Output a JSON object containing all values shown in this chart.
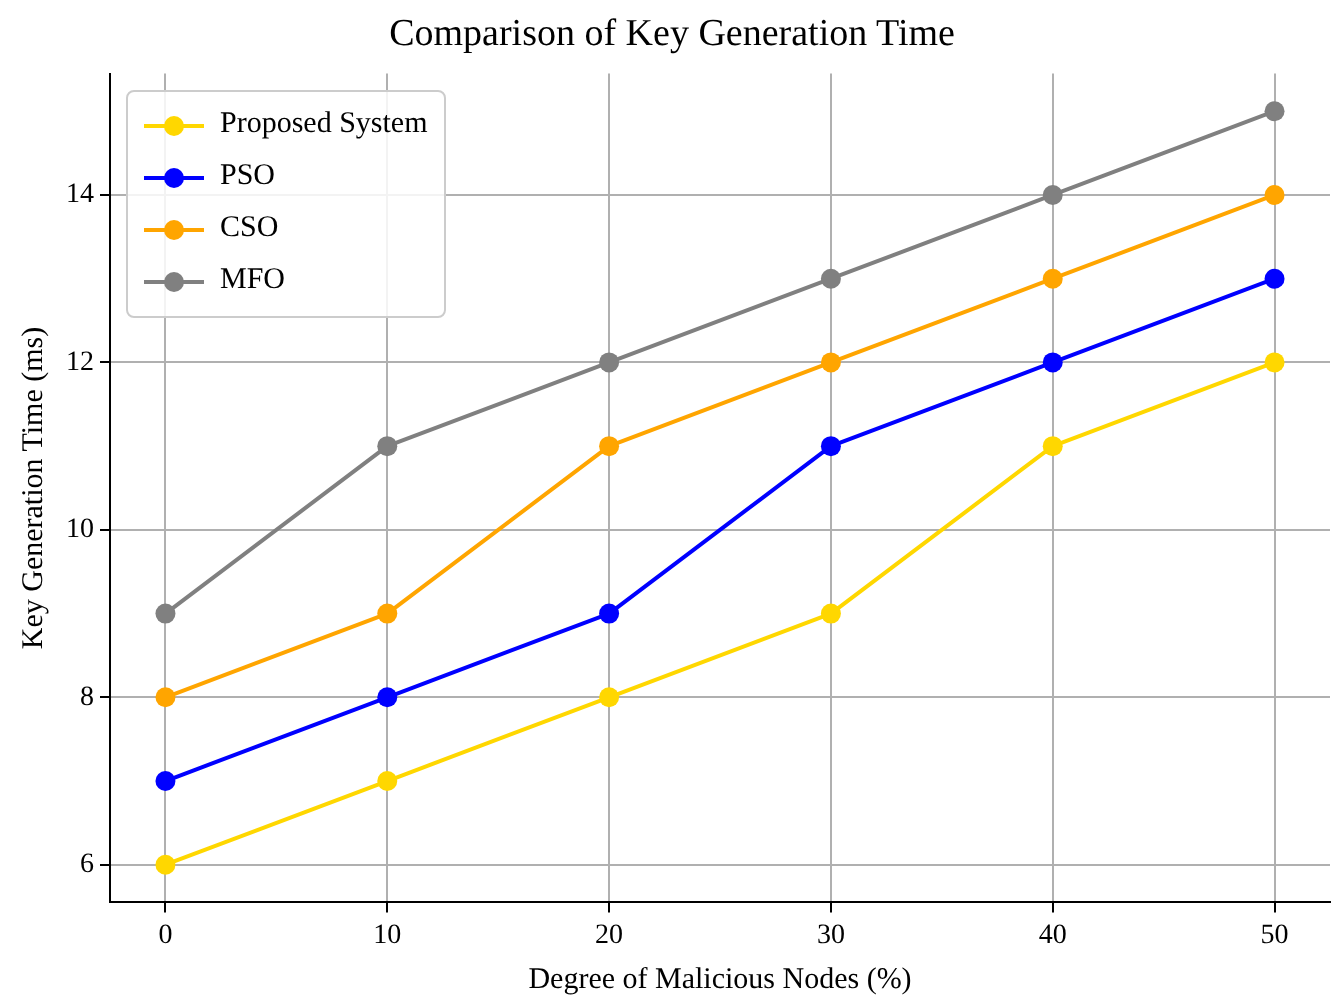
{
  "chart_data": {
    "type": "line",
    "title": "Comparison of Key Generation Time",
    "xlabel": "Degree of Malicious Nodes (%)",
    "ylabel": "Key Generation Time (ms)",
    "x": [
      0,
      10,
      20,
      30,
      40,
      50
    ],
    "series": [
      {
        "name": "Proposed System",
        "color": "#ffd700",
        "values": [
          6,
          7,
          8,
          9,
          11,
          12
        ]
      },
      {
        "name": "PSO",
        "color": "#0000ff",
        "values": [
          7,
          8,
          9,
          11,
          12,
          13
        ]
      },
      {
        "name": "CSO",
        "color": "#ffa500",
        "values": [
          8,
          9,
          11,
          12,
          13,
          14
        ]
      },
      {
        "name": "MFO",
        "color": "#808080",
        "values": [
          9,
          11,
          12,
          13,
          14,
          15
        ]
      }
    ],
    "xlim": [
      -2.5,
      52.5
    ],
    "xticks": [
      0,
      10,
      20,
      30,
      40,
      50
    ],
    "ylim": [
      5.55,
      15.45
    ],
    "yticks": [
      6,
      8,
      10,
      12,
      14
    ],
    "grid": true,
    "legend": "top left",
    "marker": "circle",
    "line_style": "solid"
  }
}
